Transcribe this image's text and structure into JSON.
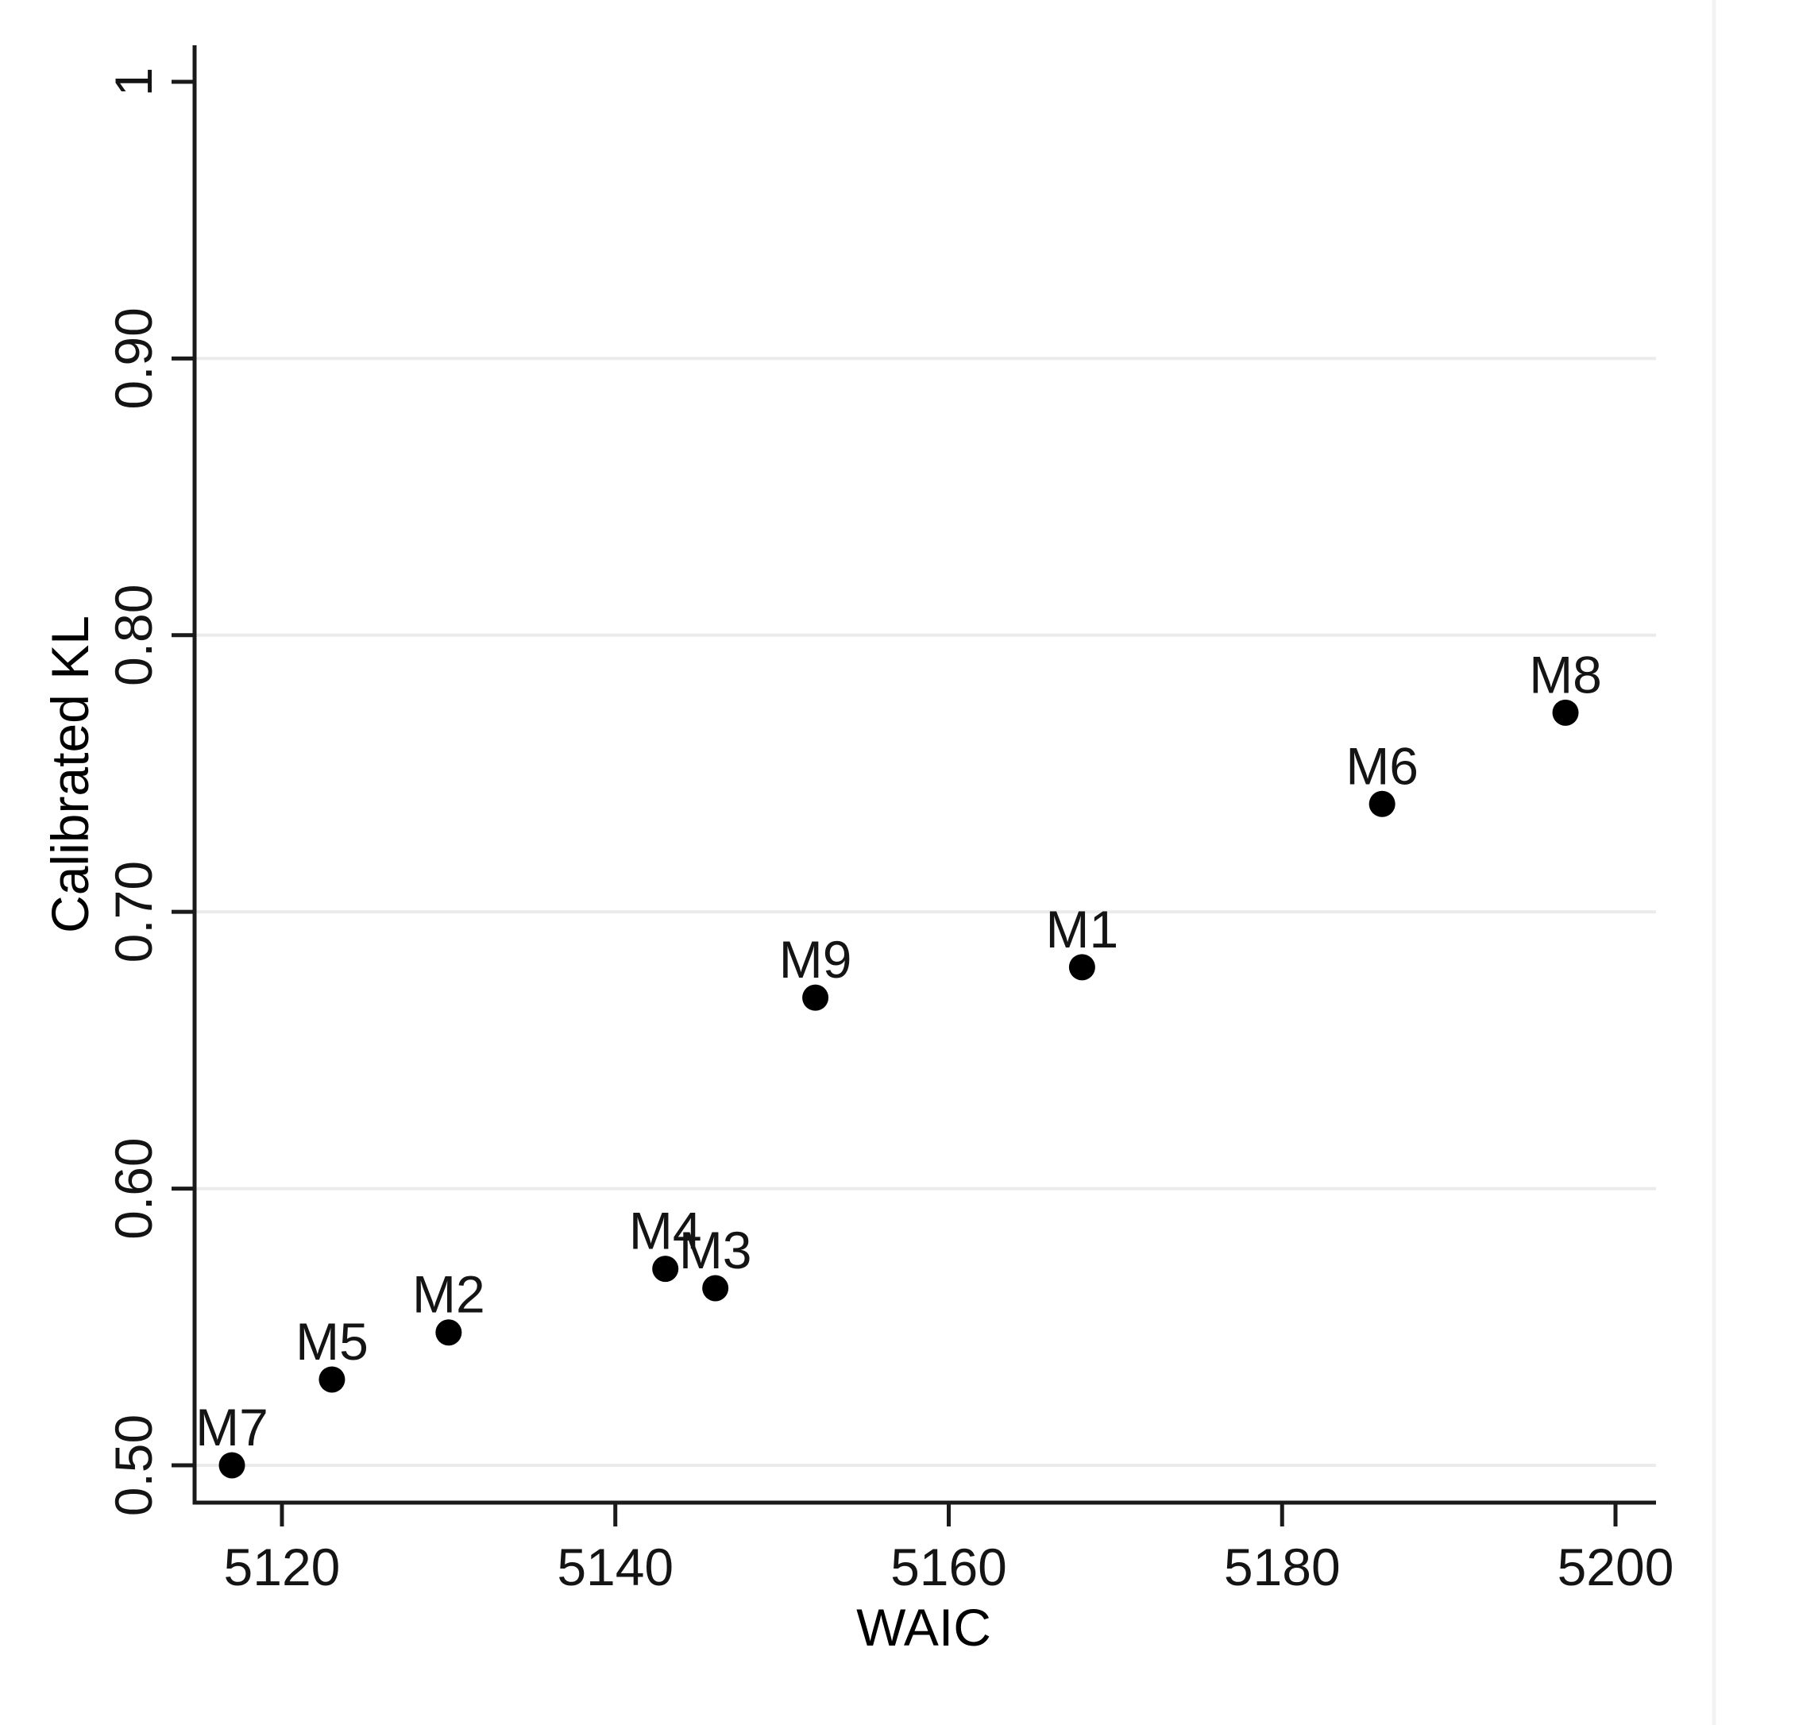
{
  "figure": {
    "background": "#ffffff",
    "axis_color": "#1a1a1a",
    "text_color": "#141414",
    "gridline_color": "#ebebeb",
    "frame_line_color": "#f2f2f2"
  },
  "chart_data": {
    "type": "scatter",
    "title": "",
    "xlabel": "WAIC",
    "ylabel": "Calibrated KL",
    "xlim": [
      5114.76,
      5202.43
    ],
    "ylim": [
      0.4865,
      1.0132
    ],
    "grid": "horizontal",
    "legend": "none",
    "marker": {
      "shape": "circle",
      "color": "#000000",
      "radius_px": 16.5
    },
    "point_label_position": "above",
    "x_ticks": [
      {
        "value": 5120,
        "label": "5120"
      },
      {
        "value": 5140,
        "label": "5140"
      },
      {
        "value": 5160,
        "label": "5160"
      },
      {
        "value": 5180,
        "label": "5180"
      },
      {
        "value": 5200,
        "label": "5200"
      }
    ],
    "y_ticks": [
      {
        "value": 1.0,
        "label": "1",
        "gridline": false
      },
      {
        "value": 0.9,
        "label": "0.90",
        "gridline": true
      },
      {
        "value": 0.8,
        "label": "0.80",
        "gridline": true
      },
      {
        "value": 0.7,
        "label": "0.70",
        "gridline": true
      },
      {
        "value": 0.6,
        "label": "0.60",
        "gridline": true
      },
      {
        "value": 0.5,
        "label": "0.50",
        "gridline": true
      }
    ],
    "points": [
      {
        "label": "M1",
        "x": 5168,
        "y": 0.68
      },
      {
        "label": "M2",
        "x": 5130,
        "y": 0.548
      },
      {
        "label": "M3",
        "x": 5146,
        "y": 0.564
      },
      {
        "label": "M4",
        "x": 5143,
        "y": 0.571
      },
      {
        "label": "M5",
        "x": 5123,
        "y": 0.531
      },
      {
        "label": "M6",
        "x": 5186,
        "y": 0.739
      },
      {
        "label": "M7",
        "x": 5117,
        "y": 0.5
      },
      {
        "label": "M8",
        "x": 5197,
        "y": 0.772
      },
      {
        "label": "M9",
        "x": 5152,
        "y": 0.669
      }
    ]
  }
}
